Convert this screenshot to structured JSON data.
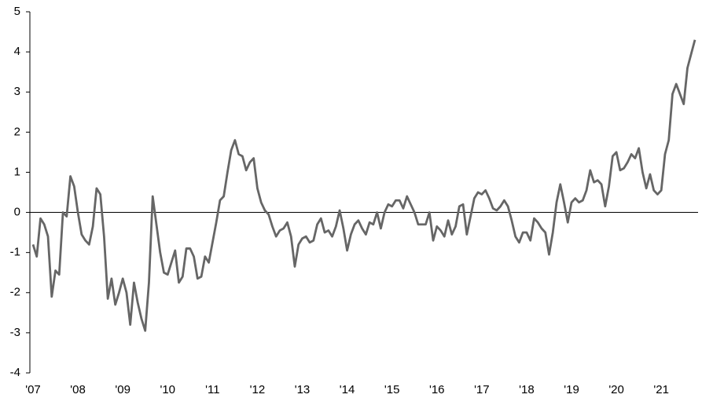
{
  "chart_data": {
    "type": "line",
    "categories": [
      "'07",
      null,
      null,
      null,
      null,
      null,
      null,
      null,
      null,
      null,
      null,
      null,
      "'08",
      null,
      null,
      null,
      null,
      null,
      null,
      null,
      null,
      null,
      null,
      null,
      "'09",
      null,
      null,
      null,
      null,
      null,
      null,
      null,
      null,
      null,
      null,
      null,
      "'10",
      null,
      null,
      null,
      null,
      null,
      null,
      null,
      null,
      null,
      null,
      null,
      "'11",
      null,
      null,
      null,
      null,
      null,
      null,
      null,
      null,
      null,
      null,
      null,
      "'12",
      null,
      null,
      null,
      null,
      null,
      null,
      null,
      null,
      null,
      null,
      null,
      "'13",
      null,
      null,
      null,
      null,
      null,
      null,
      null,
      null,
      null,
      null,
      null,
      "'14",
      null,
      null,
      null,
      null,
      null,
      null,
      null,
      null,
      null,
      null,
      null,
      "'15",
      null,
      null,
      null,
      null,
      null,
      null,
      null,
      null,
      null,
      null,
      null,
      "'16",
      null,
      null,
      null,
      null,
      null,
      null,
      null,
      null,
      null,
      null,
      null,
      "'17",
      null,
      null,
      null,
      null,
      null,
      null,
      null,
      null,
      null,
      null,
      null,
      "'18",
      null,
      null,
      null,
      null,
      null,
      null,
      null,
      null,
      null,
      null,
      null,
      "'19",
      null,
      null,
      null,
      null,
      null,
      null,
      null,
      null,
      null,
      null,
      null,
      "'20",
      null,
      null,
      null,
      null,
      null,
      null,
      null,
      null,
      null,
      null,
      null,
      "'21",
      null,
      null,
      null,
      null,
      null,
      null,
      null,
      null,
      null
    ],
    "values": [
      -0.8,
      -1.1,
      -0.15,
      -0.3,
      -0.6,
      -2.1,
      -1.45,
      -1.55,
      0,
      -0.1,
      0.9,
      0.65,
      0,
      -0.55,
      -0.7,
      -0.8,
      -0.35,
      0.6,
      0.45,
      -0.6,
      -2.15,
      -1.65,
      -2.3,
      -2.0,
      -1.65,
      -2.0,
      -2.8,
      -1.75,
      -2.25,
      -2.65,
      -2.95,
      -1.75,
      0.4,
      -0.3,
      -1.0,
      -1.5,
      -1.55,
      -1.25,
      -0.95,
      -1.75,
      -1.6,
      -0.9,
      -0.9,
      -1.1,
      -1.65,
      -1.6,
      -1.1,
      -1.25,
      -0.75,
      -0.25,
      0.3,
      0.4,
      1.0,
      1.55,
      1.8,
      1.45,
      1.4,
      1.05,
      1.25,
      1.35,
      0.6,
      0.25,
      0.05,
      -0.05,
      -0.35,
      -0.6,
      -0.45,
      -0.4,
      -0.25,
      -0.6,
      -1.35,
      -0.8,
      -0.65,
      -0.6,
      -0.75,
      -0.7,
      -0.3,
      -0.15,
      -0.5,
      -0.45,
      -0.6,
      -0.35,
      0.05,
      -0.4,
      -0.95,
      -0.55,
      -0.3,
      -0.2,
      -0.4,
      -0.55,
      -0.25,
      -0.3,
      0,
      -0.4,
      0,
      0.2,
      0.15,
      0.3,
      0.3,
      0.1,
      0.4,
      0.2,
      0,
      -0.3,
      -0.3,
      -0.3,
      0,
      -0.7,
      -0.35,
      -0.45,
      -0.6,
      -0.2,
      -0.55,
      -0.35,
      0.15,
      0.2,
      -0.55,
      -0.1,
      0.35,
      0.5,
      0.45,
      0.55,
      0.35,
      0.1,
      0.05,
      0.15,
      0.3,
      0.15,
      -0.2,
      -0.6,
      -0.75,
      -0.5,
      -0.5,
      -0.7,
      -0.15,
      -0.25,
      -0.4,
      -0.5,
      -1.05,
      -0.5,
      0.25,
      0.7,
      0.25,
      -0.25,
      0.25,
      0.35,
      0.25,
      0.3,
      0.55,
      1.05,
      0.75,
      0.8,
      0.7,
      0.15,
      0.65,
      1.4,
      1.5,
      1.05,
      1.1,
      1.25,
      1.45,
      1.35,
      1.6,
      1.0,
      0.6,
      0.95,
      0.55,
      0.45,
      0.55,
      1.45,
      1.8,
      2.95,
      3.2,
      2.95,
      2.7,
      3.6,
      3.95,
      4.3
    ],
    "color": "#666666",
    "ylim": [
      -4,
      5
    ],
    "yticks": [
      -4,
      -3,
      -2,
      -1,
      0,
      1,
      2,
      3,
      4,
      5
    ]
  }
}
